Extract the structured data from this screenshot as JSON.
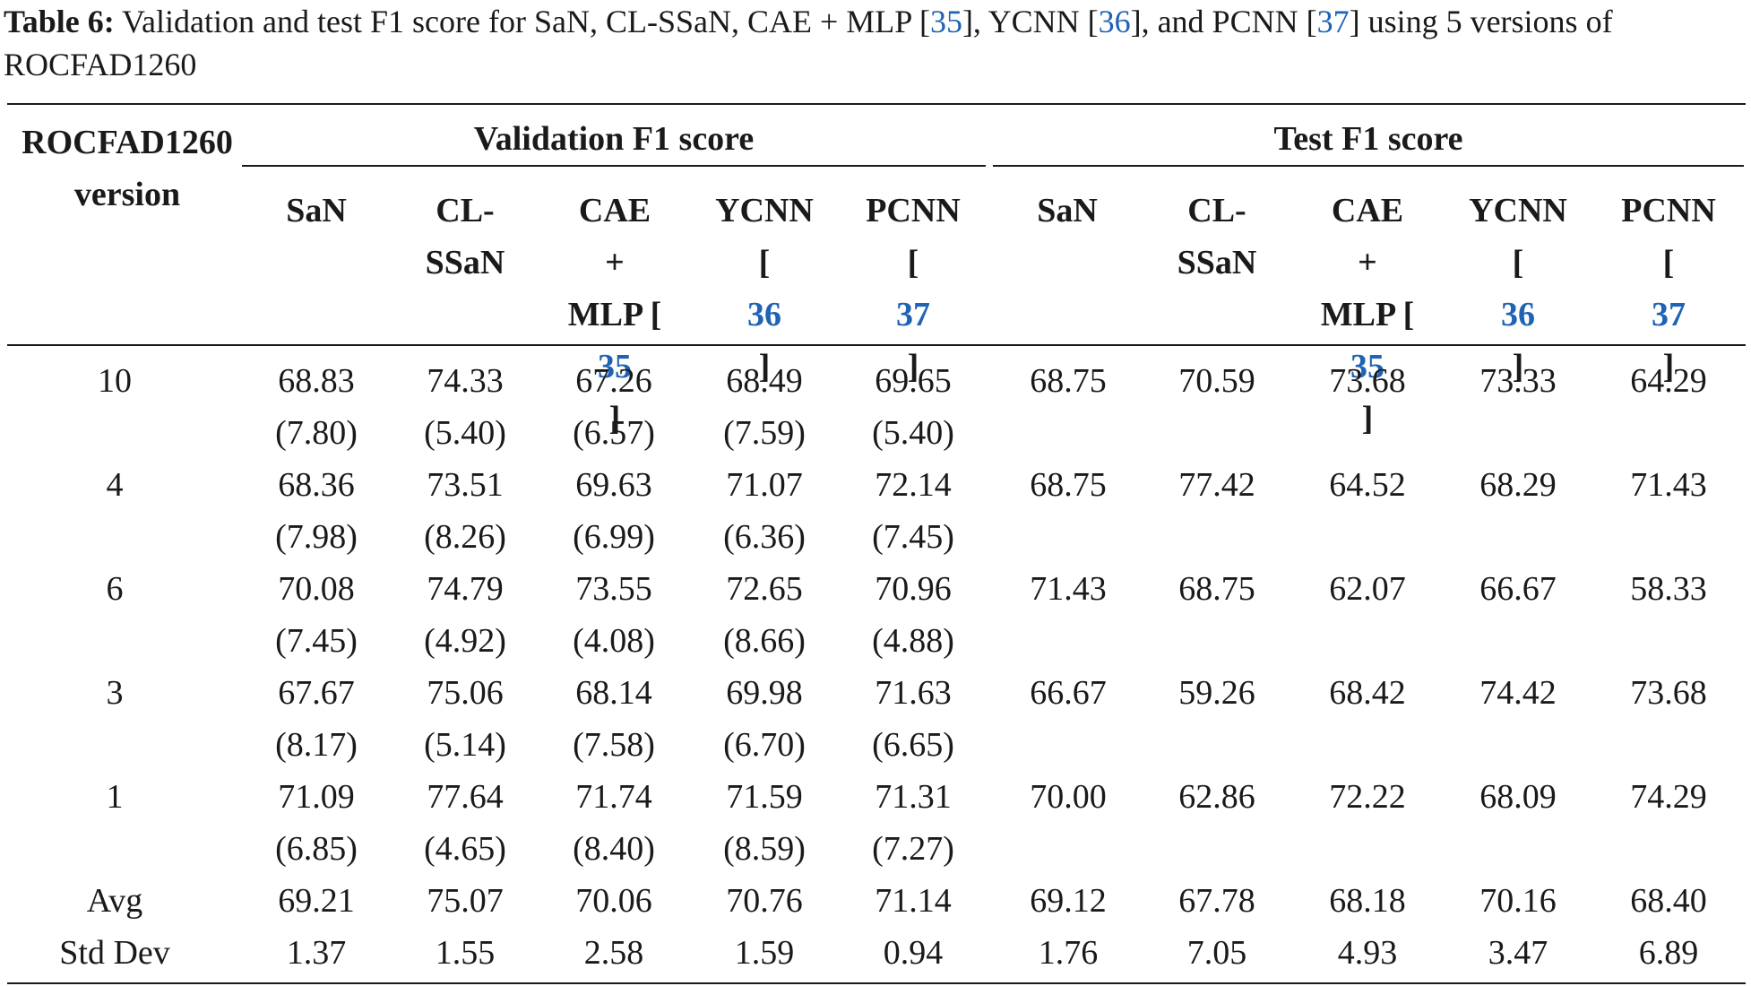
{
  "caption": {
    "label": "Table 6:",
    "text_before": " Validation and test F1 score for SaN, CL-SSaN, CAE + MLP [",
    "ref1": "35",
    "text_mid1": "], YCNN [",
    "ref2": "36",
    "text_mid2": "], and PCNN [",
    "ref3": "37",
    "text_after": "] using 5 versions of ROCFAD1260"
  },
  "header": {
    "row_label_line1": "ROCFAD1260",
    "row_label_line2": "version",
    "group_validation": "Validation F1 score",
    "group_test": "Test F1 score",
    "cols": {
      "san": "SaN",
      "clssan_1": "CL-",
      "clssan_2": "SSaN",
      "cae_1": "CAE",
      "cae_2": "+",
      "cae_3": "MLP [",
      "cae_ref": "35",
      "cae_close": "]",
      "ycnn_1": "YCNN",
      "ycnn_open": "[",
      "ycnn_ref": "36",
      "ycnn_close": "]",
      "pcnn_1": "PCNN",
      "pcnn_open": "[",
      "pcnn_ref": "37",
      "pcnn_close": "]"
    }
  },
  "rows": [
    {
      "version": "10",
      "val": [
        "68.83",
        "74.33",
        "67.26",
        "68.49",
        "69.65"
      ],
      "val_sd": [
        "(7.80)",
        "(5.40)",
        "(6.57)",
        "(7.59)",
        "(5.40)"
      ],
      "test": [
        "68.75",
        "70.59",
        "73.68",
        "73.33",
        "64.29"
      ]
    },
    {
      "version": "4",
      "val": [
        "68.36",
        "73.51",
        "69.63",
        "71.07",
        "72.14"
      ],
      "val_sd": [
        "(7.98)",
        "(8.26)",
        "(6.99)",
        "(6.36)",
        "(7.45)"
      ],
      "test": [
        "68.75",
        "77.42",
        "64.52",
        "68.29",
        "71.43"
      ]
    },
    {
      "version": "6",
      "val": [
        "70.08",
        "74.79",
        "73.55",
        "72.65",
        "70.96"
      ],
      "val_sd": [
        "(7.45)",
        "(4.92)",
        "(4.08)",
        "(8.66)",
        "(4.88)"
      ],
      "test": [
        "71.43",
        "68.75",
        "62.07",
        "66.67",
        "58.33"
      ]
    },
    {
      "version": "3",
      "val": [
        "67.67",
        "75.06",
        "68.14",
        "69.98",
        "71.63"
      ],
      "val_sd": [
        "(8.17)",
        "(5.14)",
        "(7.58)",
        "(6.70)",
        "(6.65)"
      ],
      "test": [
        "66.67",
        "59.26",
        "68.42",
        "74.42",
        "73.68"
      ]
    },
    {
      "version": "1",
      "val": [
        "71.09",
        "77.64",
        "71.74",
        "71.59",
        "71.31"
      ],
      "val_sd": [
        "(6.85)",
        "(4.65)",
        "(8.40)",
        "(8.59)",
        "(7.27)"
      ],
      "test": [
        "70.00",
        "62.86",
        "72.22",
        "68.09",
        "74.29"
      ]
    }
  ],
  "summary": [
    {
      "label": "Avg",
      "val": [
        "69.21",
        "75.07",
        "70.06",
        "70.76",
        "71.14"
      ],
      "test": [
        "69.12",
        "67.78",
        "68.18",
        "70.16",
        "68.40"
      ]
    },
    {
      "label": "Std Dev",
      "val": [
        "1.37",
        "1.55",
        "2.58",
        "1.59",
        "0.94"
      ],
      "test": [
        "1.76",
        "7.05",
        "4.93",
        "3.47",
        "6.89"
      ]
    }
  ]
}
